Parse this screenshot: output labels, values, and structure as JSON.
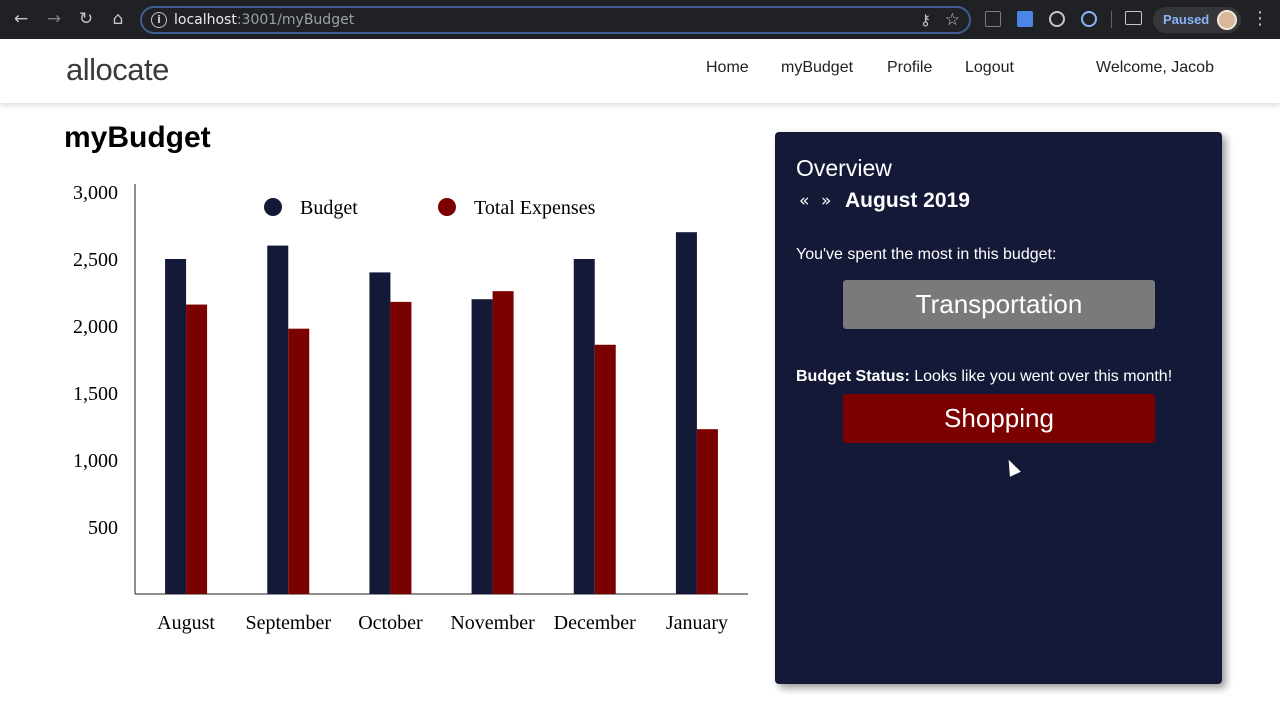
{
  "browser": {
    "url_host": "localhost",
    "url_rest": ":3001/myBudget",
    "profile_status": "Paused"
  },
  "nav": {
    "logo": "allocate",
    "links": [
      "Home",
      "myBudget",
      "Profile",
      "Logout"
    ],
    "welcome": "Welcome, Jacob"
  },
  "page": {
    "title": "myBudget"
  },
  "chart_data": {
    "type": "bar",
    "categories": [
      "August",
      "September",
      "October",
      "November",
      "December",
      "January"
    ],
    "series": [
      {
        "name": "Budget",
        "values": [
          2500,
          2600,
          2400,
          2200,
          2500,
          2700
        ],
        "color": "#151938"
      },
      {
        "name": "Total Expenses",
        "values": [
          2160,
          1980,
          2180,
          2260,
          1860,
          1230
        ],
        "color": "#7b0000"
      }
    ],
    "y_ticks": [
      "500",
      "1,000",
      "1,500",
      "2,000",
      "2,500",
      "3,000"
    ],
    "ylim": [
      0,
      3000
    ],
    "legend_position": "top",
    "grid": false,
    "xlabel": "",
    "ylabel": ""
  },
  "overview": {
    "title": "Overview",
    "prev": "«",
    "next": "»",
    "month": "August 2019",
    "spent_most_text": "You've spent the most in this budget:",
    "top_category": "Transportation",
    "status_label": "Budget Status:",
    "status_text": "Looks like you went over this month!",
    "over_category": "Shopping",
    "colors": {
      "panel": "#151938",
      "neutral": "#7a7a7a",
      "over": "#7b0000"
    }
  }
}
